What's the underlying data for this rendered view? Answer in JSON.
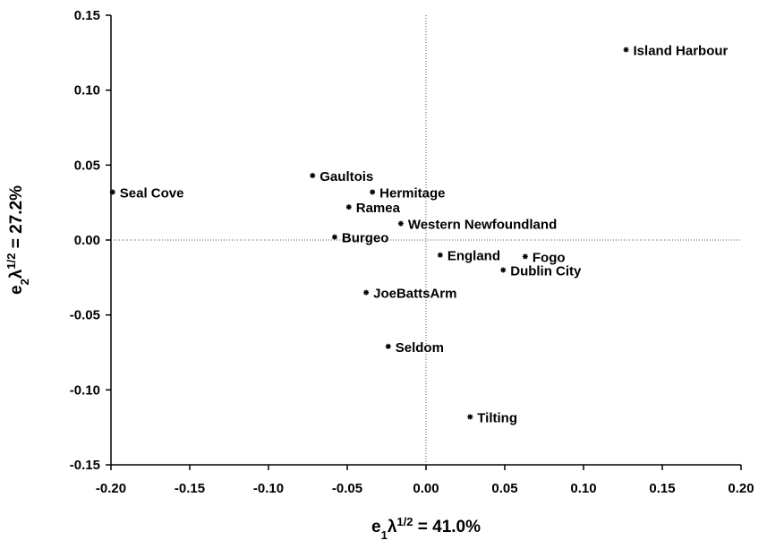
{
  "chart_data": {
    "type": "scatter",
    "xlabel": [
      "e",
      "1",
      "λ",
      "1/2",
      " = 41.0%"
    ],
    "ylabel": [
      "e",
      "2",
      "λ",
      "1/2",
      " = 27.2%"
    ],
    "labels": [
      "Island Harbour",
      "Seal Cove",
      "Gaultois",
      "Hermitage",
      "Ramea",
      "Western Newfoundland",
      "Burgeo",
      "England",
      "Fogo",
      "Dublin City",
      "JoeBattsArm",
      "Seldom",
      "Tilting"
    ],
    "x": [
      0.127,
      -0.199,
      -0.072,
      -0.034,
      -0.049,
      -0.016,
      -0.058,
      0.009,
      0.063,
      0.049,
      -0.038,
      -0.024,
      0.028
    ],
    "y": [
      0.127,
      0.032,
      0.043,
      0.032,
      0.022,
      0.011,
      0.002,
      -0.01,
      -0.011,
      -0.02,
      -0.035,
      -0.071,
      -0.118
    ],
    "color": "#000000",
    "xlim": [
      -0.2,
      0.2
    ],
    "ylim": [
      -0.15,
      0.15
    ],
    "xticks": [
      {
        "value": -0.2,
        "label": "-0.20"
      },
      -0.15,
      {
        "value": -0.1,
        "label": "-0.10"
      },
      -0.05,
      {
        "value": 0,
        "label": "0.00"
      },
      0.05,
      {
        "value": 0.1,
        "label": "0.10"
      },
      0.15,
      {
        "value": 0.2,
        "label": "0.20"
      }
    ],
    "yticks": [
      -0.15,
      {
        "value": -0.1,
        "label": "-0.10"
      },
      -0.05,
      {
        "value": 0,
        "label": "0.00"
      },
      0.05,
      {
        "value": 0.1,
        "label": "0.10"
      },
      0.15
    ],
    "zero_lines": true
  }
}
